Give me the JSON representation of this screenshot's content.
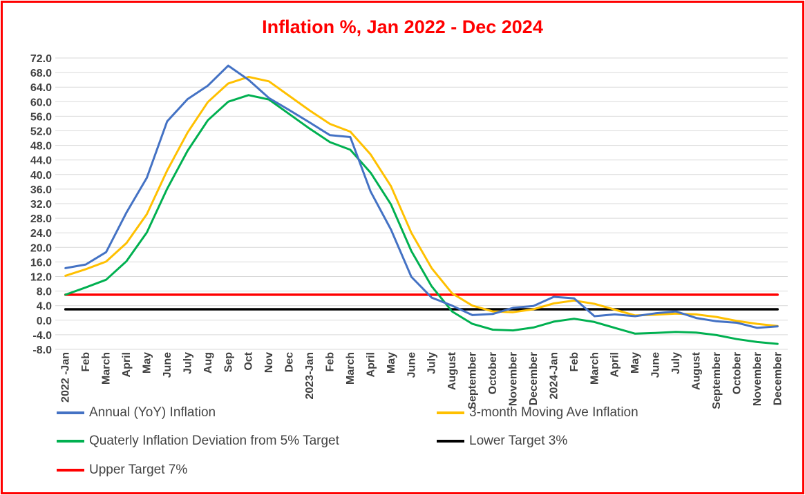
{
  "chart_data": {
    "type": "line",
    "title": "Inflation %, Jan 2022 - Dec 2024",
    "x": [
      "2022 -Jan",
      "Feb",
      "March",
      "April",
      "May",
      "June",
      "July",
      "Aug",
      "Sep",
      "Oct",
      "Nov",
      "Dec",
      "2023-Jan",
      "Feb",
      "March",
      "April",
      "May",
      "June",
      "July",
      "August",
      "September",
      "October",
      "November",
      "December",
      "2024-Jan",
      "Feb",
      "March",
      "April",
      "May",
      "June",
      "July",
      "August",
      "September",
      "October",
      "November",
      "December"
    ],
    "yticks": [
      "72.0",
      "68.0",
      "64.0",
      "60.0",
      "56.0",
      "52.0",
      "48.0",
      "44.0",
      "40.0",
      "36.0",
      "32.0",
      "28.0",
      "24.0",
      "20.0",
      "16.0",
      "12.0",
      "8.0",
      "4.0",
      "0.0",
      "-4.0",
      "-8.0"
    ],
    "ylim": [
      -8,
      72
    ],
    "grid": true,
    "legend_position": "bottom",
    "series": [
      {
        "name": "Annual (YoY) Inflation",
        "color": "#4472c4",
        "values": [
          14.3,
          15.3,
          18.7,
          29.6,
          39.1,
          54.6,
          60.7,
          64.4,
          69.9,
          66.0,
          61.0,
          57.7,
          54.3,
          50.8,
          50.3,
          35.3,
          24.9,
          11.9,
          6.2,
          4.0,
          1.4,
          1.7,
          3.4,
          3.9,
          6.4,
          6.0,
          1.1,
          1.6,
          1.1,
          1.9,
          2.4,
          0.6,
          -0.3,
          -0.7,
          -2.1,
          -1.7
        ]
      },
      {
        "name": "3-month Moving Ave Inflation",
        "color": "#ffc000",
        "values": [
          12.2,
          14.0,
          16.1,
          21.2,
          29.1,
          41.1,
          51.5,
          59.9,
          65.0,
          66.8,
          65.6,
          61.6,
          57.6,
          53.9,
          51.8,
          45.5,
          36.8,
          24.0,
          14.3,
          7.4,
          4.0,
          2.4,
          2.2,
          3.0,
          4.6,
          5.4,
          4.5,
          2.9,
          1.3,
          1.5,
          1.8,
          1.6,
          0.9,
          -0.2,
          -1.0,
          -1.6
        ]
      },
      {
        "name": "Quaterly Inflation Deviation from 5% Target",
        "color": "#00b050",
        "values": [
          7.0,
          9.0,
          11.1,
          16.2,
          24.1,
          36.1,
          46.5,
          54.9,
          60.0,
          61.8,
          60.6,
          56.6,
          52.6,
          48.9,
          46.8,
          40.5,
          31.8,
          19.0,
          9.3,
          2.4,
          -1.0,
          -2.6,
          -2.8,
          -2.0,
          -0.4,
          0.4,
          -0.5,
          -2.1,
          -3.7,
          -3.5,
          -3.2,
          -3.4,
          -4.1,
          -5.2,
          -6.0,
          -6.5
        ]
      },
      {
        "name": "Lower Target 3%",
        "color": "#000000",
        "values": [
          3,
          3,
          3,
          3,
          3,
          3,
          3,
          3,
          3,
          3,
          3,
          3,
          3,
          3,
          3,
          3,
          3,
          3,
          3,
          3,
          3,
          3,
          3,
          3,
          3,
          3,
          3,
          3,
          3,
          3,
          3,
          3,
          3,
          3,
          3,
          3
        ]
      },
      {
        "name": "Upper Target 7%",
        "color": "#ff0000",
        "values": [
          7,
          7,
          7,
          7,
          7,
          7,
          7,
          7,
          7,
          7,
          7,
          7,
          7,
          7,
          7,
          7,
          7,
          7,
          7,
          7,
          7,
          7,
          7,
          7,
          7,
          7,
          7,
          7,
          7,
          7,
          7,
          7,
          7,
          7,
          7,
          7
        ]
      }
    ]
  }
}
